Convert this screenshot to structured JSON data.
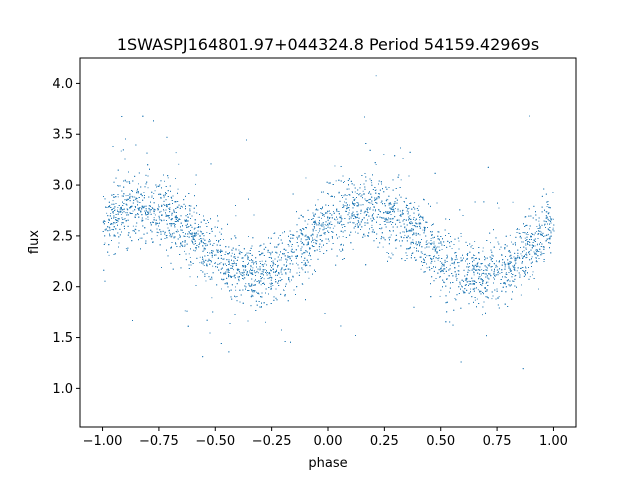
{
  "chart_data": {
    "type": "scatter",
    "title": "1SWASPJ164801.97+044324.8 Period 54159.42969s",
    "xlabel": "phase",
    "ylabel": "flux",
    "xlim": [
      -1.1,
      1.1
    ],
    "ylim": [
      0.62,
      4.25
    ],
    "xticks": [
      -1.0,
      -0.75,
      -0.5,
      -0.25,
      0.0,
      0.25,
      0.5,
      0.75,
      1.0
    ],
    "xtick_labels": [
      "−1.00",
      "−0.75",
      "−0.50",
      "−0.25",
      "0.00",
      "0.25",
      "0.50",
      "0.75",
      "1.00"
    ],
    "yticks": [
      1.0,
      1.5,
      2.0,
      2.5,
      3.0,
      3.5,
      4.0
    ],
    "ytick_labels": [
      "1.0",
      "1.5",
      "2.0",
      "2.5",
      "3.0",
      "3.5",
      "4.0"
    ],
    "grid": false,
    "marker_color": "#1f77b4",
    "series": [
      {
        "x": [
          -1.0,
          -0.9,
          -0.8,
          -0.7,
          -0.6,
          -0.5,
          -0.4,
          -0.3,
          -0.2,
          -0.1,
          0.0,
          0.1,
          0.2,
          0.3,
          0.4,
          0.5,
          0.6,
          0.7,
          0.8,
          0.9,
          1.0
        ],
        "y": [
          2.62,
          2.75,
          2.78,
          2.7,
          2.5,
          2.28,
          2.15,
          2.12,
          2.2,
          2.45,
          2.65,
          2.75,
          2.78,
          2.72,
          2.5,
          2.28,
          2.15,
          2.12,
          2.2,
          2.42,
          2.62
        ]
      }
    ]
  }
}
